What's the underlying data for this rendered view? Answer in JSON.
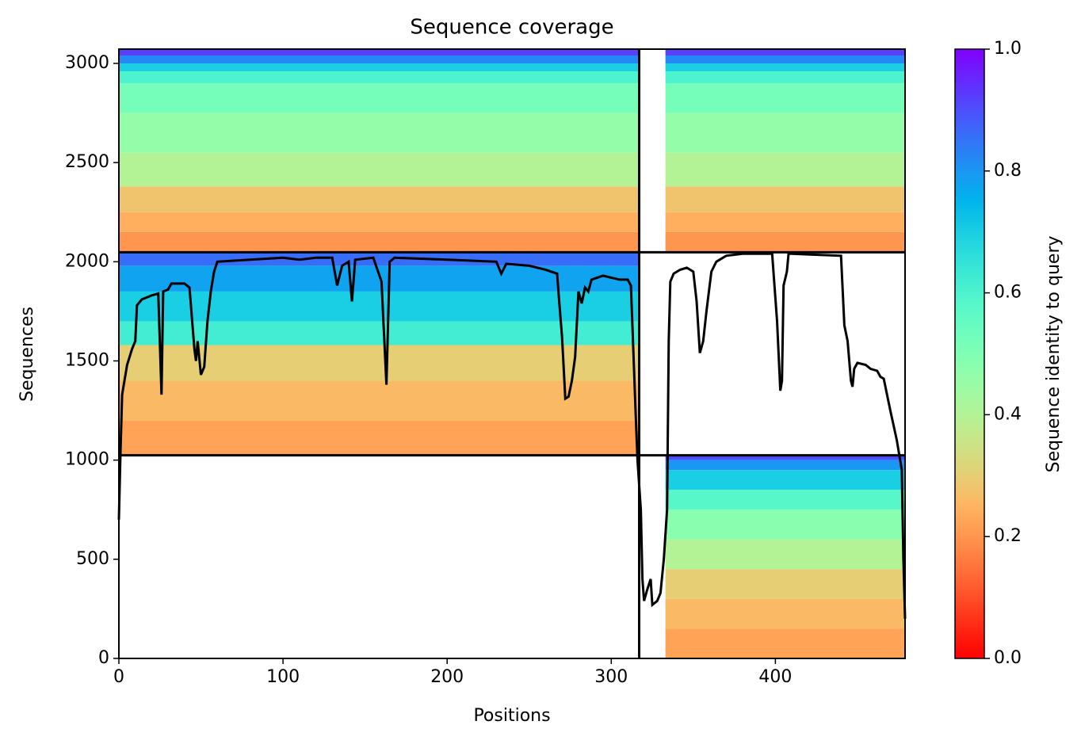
{
  "chart_data": {
    "type": "coverage",
    "title": "Sequence coverage",
    "xlabel": "Positions",
    "ylabel": "Sequences",
    "colorbar_label": "Sequence identity to query",
    "colormap": "rainbow_r",
    "xlim": [
      0,
      479
    ],
    "ylim": [
      0,
      3072
    ],
    "xticks": [
      0,
      100,
      200,
      300,
      400
    ],
    "yticks": [
      0,
      500,
      1000,
      1500,
      2000,
      2500,
      3000
    ],
    "clim": [
      0,
      1
    ],
    "cticks": [
      {
        "value": 0,
        "label": "0.0"
      },
      0.2,
      0.4,
      0.6,
      0.8,
      {
        "value": 1,
        "label": "1.0"
      }
    ],
    "boundaries": {
      "x": [
        317
      ],
      "y": [
        1024,
        2048
      ]
    },
    "bands": [
      {
        "x": [
          0,
          317
        ],
        "y": [
          2048,
          2150
        ],
        "identity": 0.2
      },
      {
        "x": [
          0,
          317
        ],
        "y": [
          2150,
          2250
        ],
        "identity": 0.24
      },
      {
        "x": [
          0,
          317
        ],
        "y": [
          2250,
          2380
        ],
        "identity": 0.28
      },
      {
        "x": [
          0,
          317
        ],
        "y": [
          2380,
          2550
        ],
        "identity": 0.4
      },
      {
        "x": [
          0,
          317
        ],
        "y": [
          2550,
          2750
        ],
        "identity": 0.46
      },
      {
        "x": [
          0,
          317
        ],
        "y": [
          2750,
          2900
        ],
        "identity": 0.52
      },
      {
        "x": [
          0,
          317
        ],
        "y": [
          2900,
          2960
        ],
        "identity": 0.6
      },
      {
        "x": [
          0,
          317
        ],
        "y": [
          2960,
          3000
        ],
        "identity": 0.7
      },
      {
        "x": [
          0,
          317
        ],
        "y": [
          3000,
          3040
        ],
        "identity": 0.82
      },
      {
        "x": [
          0,
          317
        ],
        "y": [
          3040,
          3072
        ],
        "identity": 0.92
      },
      {
        "x": [
          333,
          479
        ],
        "y": [
          2048,
          2150
        ],
        "identity": 0.2
      },
      {
        "x": [
          333,
          479
        ],
        "y": [
          2150,
          2250
        ],
        "identity": 0.24
      },
      {
        "x": [
          333,
          479
        ],
        "y": [
          2250,
          2380
        ],
        "identity": 0.28
      },
      {
        "x": [
          333,
          479
        ],
        "y": [
          2380,
          2550
        ],
        "identity": 0.4
      },
      {
        "x": [
          333,
          479
        ],
        "y": [
          2550,
          2750
        ],
        "identity": 0.46
      },
      {
        "x": [
          333,
          479
        ],
        "y": [
          2750,
          2900
        ],
        "identity": 0.52
      },
      {
        "x": [
          333,
          479
        ],
        "y": [
          2900,
          2960
        ],
        "identity": 0.6
      },
      {
        "x": [
          333,
          479
        ],
        "y": [
          2960,
          3000
        ],
        "identity": 0.7
      },
      {
        "x": [
          333,
          479
        ],
        "y": [
          3000,
          3040
        ],
        "identity": 0.82
      },
      {
        "x": [
          333,
          479
        ],
        "y": [
          3040,
          3072
        ],
        "identity": 0.92
      },
      {
        "x": [
          0,
          317
        ],
        "y": [
          1024,
          1200
        ],
        "identity": 0.22
      },
      {
        "x": [
          0,
          317
        ],
        "y": [
          1200,
          1400
        ],
        "identity": 0.26
      },
      {
        "x": [
          0,
          317
        ],
        "y": [
          1400,
          1580
        ],
        "identity": 0.3
      },
      {
        "x": [
          0,
          317
        ],
        "y": [
          1580,
          1700
        ],
        "identity": 0.62
      },
      {
        "x": [
          0,
          317
        ],
        "y": [
          1700,
          1850
        ],
        "identity": 0.7
      },
      {
        "x": [
          0,
          317
        ],
        "y": [
          1850,
          1980
        ],
        "identity": 0.78
      },
      {
        "x": [
          0,
          317
        ],
        "y": [
          1980,
          2048
        ],
        "identity": 0.86
      },
      {
        "x": [
          333,
          479
        ],
        "y": [
          0,
          150
        ],
        "identity": 0.22
      },
      {
        "x": [
          333,
          479
        ],
        "y": [
          150,
          300
        ],
        "identity": 0.26
      },
      {
        "x": [
          333,
          479
        ],
        "y": [
          300,
          450
        ],
        "identity": 0.3
      },
      {
        "x": [
          333,
          479
        ],
        "y": [
          450,
          600
        ],
        "identity": 0.4
      },
      {
        "x": [
          333,
          479
        ],
        "y": [
          600,
          750
        ],
        "identity": 0.48
      },
      {
        "x": [
          333,
          479
        ],
        "y": [
          750,
          850
        ],
        "identity": 0.58
      },
      {
        "x": [
          333,
          479
        ],
        "y": [
          850,
          950
        ],
        "identity": 0.7
      },
      {
        "x": [
          333,
          479
        ],
        "y": [
          950,
          1000
        ],
        "identity": 0.8
      },
      {
        "x": [
          333,
          479
        ],
        "y": [
          1000,
          1024
        ],
        "identity": 0.9
      }
    ],
    "coverage": {
      "color": "#000000",
      "x": [
        0,
        1,
        2,
        5,
        8,
        10,
        11,
        14,
        20,
        24,
        26,
        27,
        30,
        32,
        40,
        43,
        46,
        47,
        48,
        50,
        52,
        54,
        56,
        58,
        60,
        80,
        100,
        110,
        120,
        130,
        133,
        136,
        140,
        142,
        144,
        155,
        160,
        163,
        165,
        168,
        200,
        230,
        233,
        236,
        250,
        260,
        267,
        268,
        270,
        272,
        274,
        276,
        278,
        280,
        282,
        284,
        286,
        288,
        295,
        305,
        310,
        312,
        315,
        316,
        318,
        319,
        320,
        322,
        324,
        325,
        328,
        330,
        332,
        334,
        335,
        336,
        338,
        342,
        346,
        350,
        352,
        354,
        356,
        358,
        361,
        364,
        370,
        380,
        398,
        401,
        403,
        404,
        405,
        407,
        408,
        410,
        440,
        442,
        444,
        446,
        447,
        448,
        450,
        455,
        458,
        462,
        464,
        466,
        470,
        474,
        476,
        477,
        478,
        479
      ],
      "values": [
        700,
        1050,
        1330,
        1480,
        1560,
        1600,
        1780,
        1810,
        1830,
        1840,
        1330,
        1850,
        1860,
        1890,
        1890,
        1870,
        1560,
        1500,
        1600,
        1430,
        1470,
        1700,
        1850,
        1950,
        2000,
        2010,
        2020,
        2010,
        2020,
        2020,
        1880,
        1980,
        2000,
        1800,
        2010,
        2020,
        1900,
        1380,
        2000,
        2020,
        2010,
        2000,
        1940,
        1990,
        1980,
        1960,
        1940,
        1830,
        1620,
        1310,
        1320,
        1400,
        1520,
        1850,
        1790,
        1870,
        1850,
        1910,
        1930,
        1910,
        1910,
        1880,
        1200,
        1000,
        750,
        400,
        290,
        350,
        400,
        270,
        290,
        330,
        500,
        750,
        1600,
        1900,
        1940,
        1960,
        1970,
        1950,
        1800,
        1540,
        1600,
        1750,
        1950,
        2000,
        2030,
        2040,
        2040,
        1700,
        1350,
        1400,
        1880,
        1950,
        2040,
        2040,
        2030,
        1680,
        1600,
        1400,
        1370,
        1460,
        1490,
        1480,
        1460,
        1450,
        1420,
        1410,
        1250,
        1100,
        1000,
        950,
        500,
        200
      ]
    }
  }
}
